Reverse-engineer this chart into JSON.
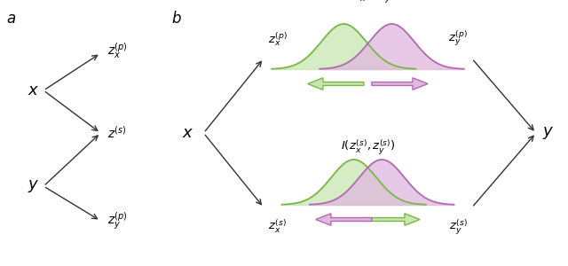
{
  "fig_width": 6.4,
  "fig_height": 3.0,
  "dpi": 100,
  "green_color": "#7ab648",
  "purple_color": "#b06cb0",
  "green_fill": "#c8e6b0",
  "purple_fill": "#e0b8e0",
  "arrow_color_dark": "#333333",
  "panel_a_label": "a",
  "panel_b_label": "b",
  "label_x": "$x$",
  "label_y": "$y$",
  "label_zxp_a": "$z_x^{(p)}$",
  "label_zs_a": "$z^{(s)}$",
  "label_zyp_a": "$z_y^{(p)}$",
  "label_zxp_b": "$z_x^{(p)}$",
  "label_zyp_b": "$z_y^{(p)}$",
  "label_zxs_b": "$z_x^{(s)}$",
  "label_zys_b": "$z_y^{(s)}$",
  "label_mutual_top": "$I^{(c)}(z_x^{(p)},z_y^{(p)})$",
  "label_mutual_bot": "$I(z_x^{(s)},z_y^{(s)})$"
}
